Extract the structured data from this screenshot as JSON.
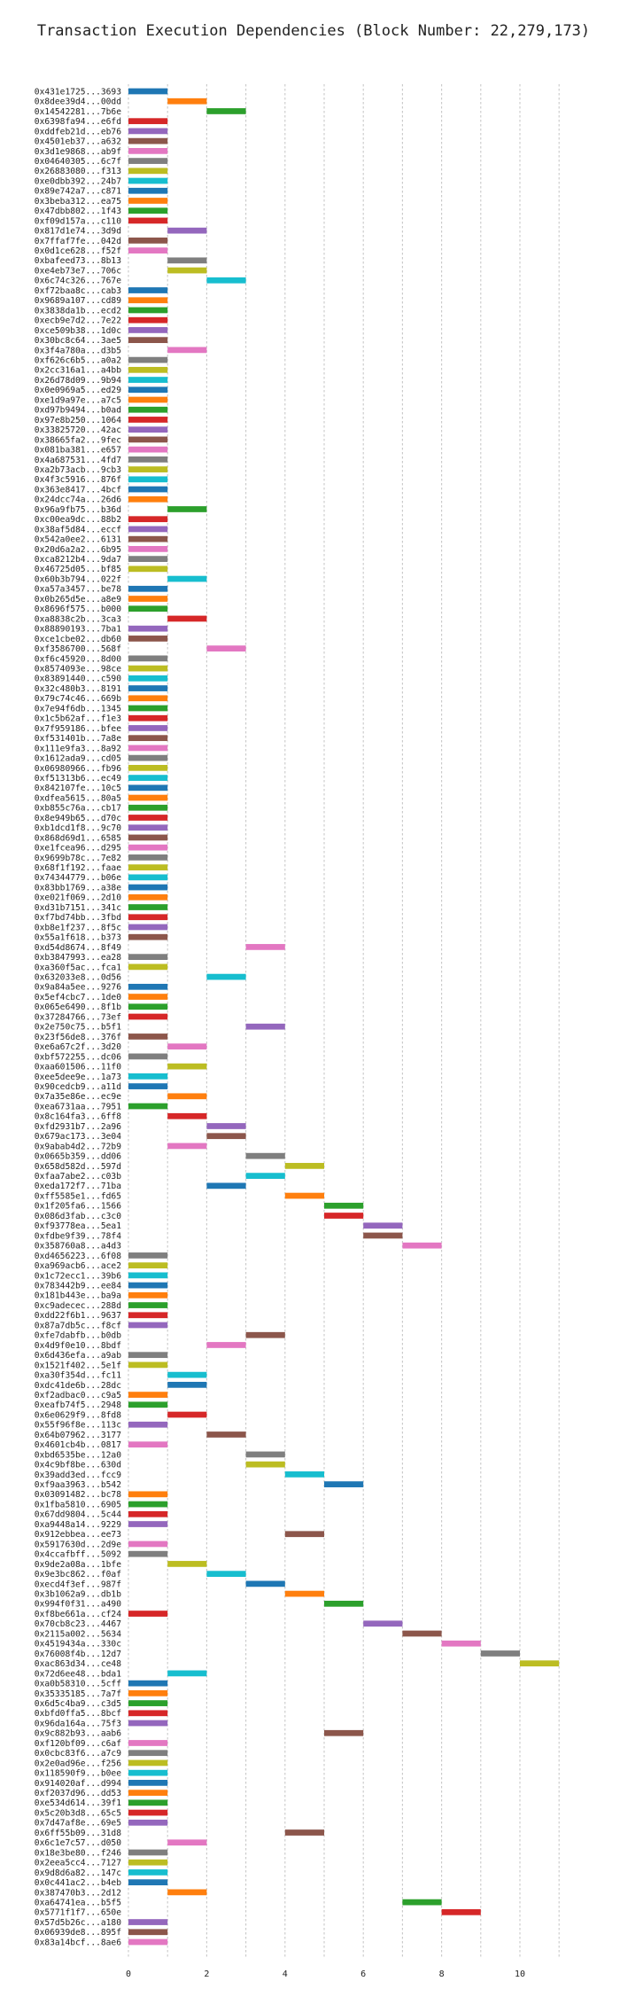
{
  "chart_data": {
    "type": "bar",
    "orientation": "horizontal",
    "title": "Transaction Execution Dependencies (Block Number: 22,279,173)",
    "xlabel": "",
    "ylabel": "",
    "xlim": [
      -0.7,
      11.3
    ],
    "xticks": [
      0,
      2,
      4,
      6,
      8,
      10
    ],
    "grid": "vertical dotted",
    "palette": [
      "#1f77b4",
      "#ff7f0e",
      "#2ca02c",
      "#d62728",
      "#9467bd",
      "#8c564b",
      "#e377c2",
      "#7f7f7f",
      "#bcbd22",
      "#17becf"
    ],
    "transactions": [
      {
        "label": "0x431e1725...3693",
        "start": 0,
        "color": 0
      },
      {
        "label": "0x8dee39d4...00dd",
        "start": 1,
        "color": 1
      },
      {
        "label": "0x14542281...7b6e",
        "start": 2,
        "color": 2
      },
      {
        "label": "0x6398fa94...e6fd",
        "start": 0,
        "color": 3
      },
      {
        "label": "0xddfeb21d...eb76",
        "start": 0,
        "color": 4
      },
      {
        "label": "0x4501eb37...a632",
        "start": 0,
        "color": 5
      },
      {
        "label": "0x3d1e9868...ab9f",
        "start": 0,
        "color": 6
      },
      {
        "label": "0x04640305...6c7f",
        "start": 0,
        "color": 7
      },
      {
        "label": "0x26883080...f313",
        "start": 0,
        "color": 8
      },
      {
        "label": "0xe0dbb392...24b7",
        "start": 0,
        "color": 9
      },
      {
        "label": "0x89e742a7...c871",
        "start": 0,
        "color": 0
      },
      {
        "label": "0x3beba312...ea75",
        "start": 0,
        "color": 1
      },
      {
        "label": "0x47dbb802...1f43",
        "start": 0,
        "color": 2
      },
      {
        "label": "0xf09d157a...c110",
        "start": 0,
        "color": 3
      },
      {
        "label": "0x817d1e74...3d9d",
        "start": 1,
        "color": 4
      },
      {
        "label": "0x7ffaf7fe...042d",
        "start": 0,
        "color": 5
      },
      {
        "label": "0x0d1ce628...f52f",
        "start": 0,
        "color": 6
      },
      {
        "label": "0xbafeed73...8b13",
        "start": 1,
        "color": 7
      },
      {
        "label": "0xe4eb73e7...706c",
        "start": 1,
        "color": 8
      },
      {
        "label": "0x6c74c326...767e",
        "start": 2,
        "color": 9
      },
      {
        "label": "0xf72baa8c...cab3",
        "start": 0,
        "color": 0
      },
      {
        "label": "0x9689a107...cd89",
        "start": 0,
        "color": 1
      },
      {
        "label": "0x3838da1b...ecd2",
        "start": 0,
        "color": 2
      },
      {
        "label": "0xecb9e7d2...7e22",
        "start": 0,
        "color": 3
      },
      {
        "label": "0xce509b38...1d0c",
        "start": 0,
        "color": 4
      },
      {
        "label": "0x30bc8c64...3ae5",
        "start": 0,
        "color": 5
      },
      {
        "label": "0x3f4a780a...d3b5",
        "start": 1,
        "color": 6
      },
      {
        "label": "0xf626c6b5...a0a2",
        "start": 0,
        "color": 7
      },
      {
        "label": "0x2cc316a1...a4bb",
        "start": 0,
        "color": 8
      },
      {
        "label": "0x26d78d09...9b94",
        "start": 0,
        "color": 9
      },
      {
        "label": "0x0e0969a5...ed29",
        "start": 0,
        "color": 0
      },
      {
        "label": "0xe1d9a97e...a7c5",
        "start": 0,
        "color": 1
      },
      {
        "label": "0xd97b9494...b0ad",
        "start": 0,
        "color": 2
      },
      {
        "label": "0x97e8b250...1064",
        "start": 0,
        "color": 3
      },
      {
        "label": "0x33825720...42ac",
        "start": 0,
        "color": 4
      },
      {
        "label": "0x38665fa2...9fec",
        "start": 0,
        "color": 5
      },
      {
        "label": "0x081ba381...e657",
        "start": 0,
        "color": 6
      },
      {
        "label": "0x4a687531...4fd7",
        "start": 0,
        "color": 7
      },
      {
        "label": "0xa2b73acb...9cb3",
        "start": 0,
        "color": 8
      },
      {
        "label": "0x4f3c5916...876f",
        "start": 0,
        "color": 9
      },
      {
        "label": "0x363e8417...4bcf",
        "start": 0,
        "color": 0
      },
      {
        "label": "0x24dcc74a...26d6",
        "start": 0,
        "color": 1
      },
      {
        "label": "0x96a9fb75...b36d",
        "start": 1,
        "color": 2
      },
      {
        "label": "0xc00ea9dc...88b2",
        "start": 0,
        "color": 3
      },
      {
        "label": "0x38af5d84...eccf",
        "start": 0,
        "color": 4
      },
      {
        "label": "0x542a0ee2...6131",
        "start": 0,
        "color": 5
      },
      {
        "label": "0x20d6a2a2...6b95",
        "start": 0,
        "color": 6
      },
      {
        "label": "0xca8212b4...9da7",
        "start": 0,
        "color": 7
      },
      {
        "label": "0x46725d05...bf85",
        "start": 0,
        "color": 8
      },
      {
        "label": "0x60b3b794...022f",
        "start": 1,
        "color": 9
      },
      {
        "label": "0xa57a3457...be78",
        "start": 0,
        "color": 0
      },
      {
        "label": "0x0b265d5e...a8e9",
        "start": 0,
        "color": 1
      },
      {
        "label": "0x8696f575...b000",
        "start": 0,
        "color": 2
      },
      {
        "label": "0xa8838c2b...3ca3",
        "start": 1,
        "color": 3
      },
      {
        "label": "0x88890193...7ba1",
        "start": 0,
        "color": 4
      },
      {
        "label": "0xce1cbe02...db60",
        "start": 0,
        "color": 5
      },
      {
        "label": "0xf3586700...568f",
        "start": 2,
        "color": 6
      },
      {
        "label": "0xf6c45920...8d00",
        "start": 0,
        "color": 7
      },
      {
        "label": "0x8574093e...98ce",
        "start": 0,
        "color": 8
      },
      {
        "label": "0x83891440...c590",
        "start": 0,
        "color": 9
      },
      {
        "label": "0x32c480b3...8191",
        "start": 0,
        "color": 0
      },
      {
        "label": "0x79c74c46...669b",
        "start": 0,
        "color": 1
      },
      {
        "label": "0x7e94f6db...1345",
        "start": 0,
        "color": 2
      },
      {
        "label": "0x1c5b62af...f1e3",
        "start": 0,
        "color": 3
      },
      {
        "label": "0x7f959186...bfee",
        "start": 0,
        "color": 4
      },
      {
        "label": "0xf531401b...7a8e",
        "start": 0,
        "color": 5
      },
      {
        "label": "0x111e9fa3...8a92",
        "start": 0,
        "color": 6
      },
      {
        "label": "0x1612ada9...cd05",
        "start": 0,
        "color": 7
      },
      {
        "label": "0x06980966...fb96",
        "start": 0,
        "color": 8
      },
      {
        "label": "0xf51313b6...ec49",
        "start": 0,
        "color": 9
      },
      {
        "label": "0x842107fe...10c5",
        "start": 0,
        "color": 0
      },
      {
        "label": "0xdfea5615...80a5",
        "start": 0,
        "color": 1
      },
      {
        "label": "0xb855c76a...cb17",
        "start": 0,
        "color": 2
      },
      {
        "label": "0x8e949b65...d70c",
        "start": 0,
        "color": 3
      },
      {
        "label": "0xb1dcd1f8...9c70",
        "start": 0,
        "color": 4
      },
      {
        "label": "0x868d69d1...6585",
        "start": 0,
        "color": 5
      },
      {
        "label": "0xe1fcea96...d295",
        "start": 0,
        "color": 6
      },
      {
        "label": "0x9699b78c...7e82",
        "start": 0,
        "color": 7
      },
      {
        "label": "0x68f1f192...faae",
        "start": 0,
        "color": 8
      },
      {
        "label": "0x74344779...b06e",
        "start": 0,
        "color": 9
      },
      {
        "label": "0x83bb1769...a38e",
        "start": 0,
        "color": 0
      },
      {
        "label": "0xe021f069...2d10",
        "start": 0,
        "color": 1
      },
      {
        "label": "0xd31b7151...341c",
        "start": 0,
        "color": 2
      },
      {
        "label": "0xf7bd74bb...3fbd",
        "start": 0,
        "color": 3
      },
      {
        "label": "0xb8e1f237...8f5c",
        "start": 0,
        "color": 4
      },
      {
        "label": "0x55a1f618...b373",
        "start": 0,
        "color": 5
      },
      {
        "label": "0xd54d8674...8f49",
        "start": 3,
        "color": 6
      },
      {
        "label": "0xb3847993...ea28",
        "start": 0,
        "color": 7
      },
      {
        "label": "0xa360f5ac...fca1",
        "start": 0,
        "color": 8
      },
      {
        "label": "0x632033e8...0d56",
        "start": 2,
        "color": 9
      },
      {
        "label": "0x9a84a5ee...9276",
        "start": 0,
        "color": 0
      },
      {
        "label": "0x5ef4cbc7...1de0",
        "start": 0,
        "color": 1
      },
      {
        "label": "0x065e6490...8f1b",
        "start": 0,
        "color": 2
      },
      {
        "label": "0x37284766...73ef",
        "start": 0,
        "color": 3
      },
      {
        "label": "0x2e750c75...b5f1",
        "start": 3,
        "color": 4
      },
      {
        "label": "0x23f56de8...376f",
        "start": 0,
        "color": 5
      },
      {
        "label": "0xe6a67c2f...3d20",
        "start": 1,
        "color": 6
      },
      {
        "label": "0xbf572255...dc06",
        "start": 0,
        "color": 7
      },
      {
        "label": "0xaa601506...11f0",
        "start": 1,
        "color": 8
      },
      {
        "label": "0xee5dee9e...1a73",
        "start": 0,
        "color": 9
      },
      {
        "label": "0x90cedcb9...a11d",
        "start": 0,
        "color": 0
      },
      {
        "label": "0x7a35e86e...ec9e",
        "start": 1,
        "color": 1
      },
      {
        "label": "0xea6731aa...7951",
        "start": 0,
        "color": 2
      },
      {
        "label": "0x8c164fa3...6ff8",
        "start": 1,
        "color": 3
      },
      {
        "label": "0xfd2931b7...2a96",
        "start": 2,
        "color": 4
      },
      {
        "label": "0x679ac173...3e04",
        "start": 2,
        "color": 5
      },
      {
        "label": "0x9abab4d2...72b9",
        "start": 1,
        "color": 6
      },
      {
        "label": "0x0665b359...dd06",
        "start": 3,
        "color": 7
      },
      {
        "label": "0x658d582d...597d",
        "start": 4,
        "color": 8
      },
      {
        "label": "0xfaa7abe2...c03b",
        "start": 3,
        "color": 9
      },
      {
        "label": "0xeda172f7...71ba",
        "start": 2,
        "color": 0
      },
      {
        "label": "0xff5585e1...fd65",
        "start": 4,
        "color": 1
      },
      {
        "label": "0x1f205fa6...1566",
        "start": 5,
        "color": 2
      },
      {
        "label": "0x086d3fab...c3c0",
        "start": 5,
        "color": 3
      },
      {
        "label": "0xf93778ea...5ea1",
        "start": 6,
        "color": 4
      },
      {
        "label": "0xfdbe9f39...78f4",
        "start": 6,
        "color": 5
      },
      {
        "label": "0x358760a8...a4d3",
        "start": 7,
        "color": 6
      },
      {
        "label": "0xd4656223...6f08",
        "start": 0,
        "color": 7
      },
      {
        "label": "0xa969acb6...ace2",
        "start": 0,
        "color": 8
      },
      {
        "label": "0x1c72ecc1...39b6",
        "start": 0,
        "color": 9
      },
      {
        "label": "0x783442b9...ee84",
        "start": 0,
        "color": 0
      },
      {
        "label": "0x181b443e...ba9a",
        "start": 0,
        "color": 1
      },
      {
        "label": "0xc9adecec...288d",
        "start": 0,
        "color": 2
      },
      {
        "label": "0xdd22f6b1...9637",
        "start": 0,
        "color": 3
      },
      {
        "label": "0x87a7db5c...f8cf",
        "start": 0,
        "color": 4
      },
      {
        "label": "0xfe7dabfb...b0db",
        "start": 3,
        "color": 5
      },
      {
        "label": "0x4d9f0e10...8bdf",
        "start": 2,
        "color": 6
      },
      {
        "label": "0x6d436efa...a9ab",
        "start": 0,
        "color": 7
      },
      {
        "label": "0x1521f402...5e1f",
        "start": 0,
        "color": 8
      },
      {
        "label": "0xa30f354d...fc11",
        "start": 1,
        "color": 9
      },
      {
        "label": "0xdc41de6b...28dc",
        "start": 1,
        "color": 0
      },
      {
        "label": "0xf2adbac0...c9a5",
        "start": 0,
        "color": 1
      },
      {
        "label": "0xeafb74f5...2948",
        "start": 0,
        "color": 2
      },
      {
        "label": "0x6e0629f9...8fd8",
        "start": 1,
        "color": 3
      },
      {
        "label": "0x55f96f8e...113c",
        "start": 0,
        "color": 4
      },
      {
        "label": "0x64b07962...3177",
        "start": 2,
        "color": 5
      },
      {
        "label": "0x4601cb4b...0817",
        "start": 0,
        "color": 6
      },
      {
        "label": "0xbd6535be...12a0",
        "start": 3,
        "color": 7
      },
      {
        "label": "0x4c9bf8be...630d",
        "start": 3,
        "color": 8
      },
      {
        "label": "0x39add3ed...fcc9",
        "start": 4,
        "color": 9
      },
      {
        "label": "0xf9aa3963...b542",
        "start": 5,
        "color": 0
      },
      {
        "label": "0x03091482...bc78",
        "start": 0,
        "color": 1
      },
      {
        "label": "0x1fba5810...6905",
        "start": 0,
        "color": 2
      },
      {
        "label": "0x67dd9804...5c44",
        "start": 0,
        "color": 3
      },
      {
        "label": "0xa9448a14...9229",
        "start": 0,
        "color": 4
      },
      {
        "label": "0x912ebbea...ee73",
        "start": 4,
        "color": 5
      },
      {
        "label": "0x5917630d...2d9e",
        "start": 0,
        "color": 6
      },
      {
        "label": "0x4ccafbff...5092",
        "start": 0,
        "color": 7
      },
      {
        "label": "0x9de2a08a...1bfe",
        "start": 1,
        "color": 8
      },
      {
        "label": "0x9e3bc862...f0af",
        "start": 2,
        "color": 9
      },
      {
        "label": "0xecd4f3ef...987f",
        "start": 3,
        "color": 0
      },
      {
        "label": "0x3b1062a9...db1b",
        "start": 4,
        "color": 1
      },
      {
        "label": "0x994f0f31...a490",
        "start": 5,
        "color": 2
      },
      {
        "label": "0xf8be661a...cf24",
        "start": 0,
        "color": 3
      },
      {
        "label": "0x70cb8c23...4467",
        "start": 6,
        "color": 4
      },
      {
        "label": "0x2115a002...5634",
        "start": 7,
        "color": 5
      },
      {
        "label": "0x4519434a...330c",
        "start": 8,
        "color": 6
      },
      {
        "label": "0x76008f4b...12d7",
        "start": 9,
        "color": 7
      },
      {
        "label": "0xac863d34...ce48",
        "start": 10,
        "color": 8
      },
      {
        "label": "0x72d6ee48...bda1",
        "start": 1,
        "color": 9
      },
      {
        "label": "0xa0b58310...5cff",
        "start": 0,
        "color": 0
      },
      {
        "label": "0x35335185...7a7f",
        "start": 0,
        "color": 1
      },
      {
        "label": "0x6d5c4ba9...c3d5",
        "start": 0,
        "color": 2
      },
      {
        "label": "0xbfd0ffa5...8bcf",
        "start": 0,
        "color": 3
      },
      {
        "label": "0x96da164a...75f3",
        "start": 0,
        "color": 4
      },
      {
        "label": "0x9c882b93...aab6",
        "start": 5,
        "color": 5
      },
      {
        "label": "0xf120bf09...c6af",
        "start": 0,
        "color": 6
      },
      {
        "label": "0x0cbc83f6...a7c9",
        "start": 0,
        "color": 7
      },
      {
        "label": "0x2e0ad96e...f256",
        "start": 0,
        "color": 8
      },
      {
        "label": "0x118590f9...b0ee",
        "start": 0,
        "color": 9
      },
      {
        "label": "0x914020af...d994",
        "start": 0,
        "color": 0
      },
      {
        "label": "0xf2037d96...dd53",
        "start": 0,
        "color": 1
      },
      {
        "label": "0xe534d614...39f1",
        "start": 0,
        "color": 2
      },
      {
        "label": "0x5c20b3d8...65c5",
        "start": 0,
        "color": 3
      },
      {
        "label": "0x7d47af8e...69e5",
        "start": 0,
        "color": 4
      },
      {
        "label": "0x6ff55b09...31d8",
        "start": 4,
        "color": 5
      },
      {
        "label": "0x6c1e7c57...d050",
        "start": 1,
        "color": 6
      },
      {
        "label": "0x18e3be80...f246",
        "start": 0,
        "color": 7
      },
      {
        "label": "0x2eea5cc4...7127",
        "start": 0,
        "color": 8
      },
      {
        "label": "0x9d8d6a82...147c",
        "start": 0,
        "color": 9
      },
      {
        "label": "0x0c441ac2...b4eb",
        "start": 0,
        "color": 0
      },
      {
        "label": "0x387470b3...2d12",
        "start": 1,
        "color": 1
      },
      {
        "label": "0xa64741ea...b5f5",
        "start": 7,
        "color": 2
      },
      {
        "label": "0x5771f1f7...650e",
        "start": 8,
        "color": 3
      },
      {
        "label": "0x57d5b26c...a180",
        "start": 0,
        "color": 4
      },
      {
        "label": "0x06939de8...895f",
        "start": 0,
        "color": 5
      },
      {
        "label": "0x83a14bcf...8ae6",
        "start": 0,
        "color": 6
      }
    ]
  }
}
